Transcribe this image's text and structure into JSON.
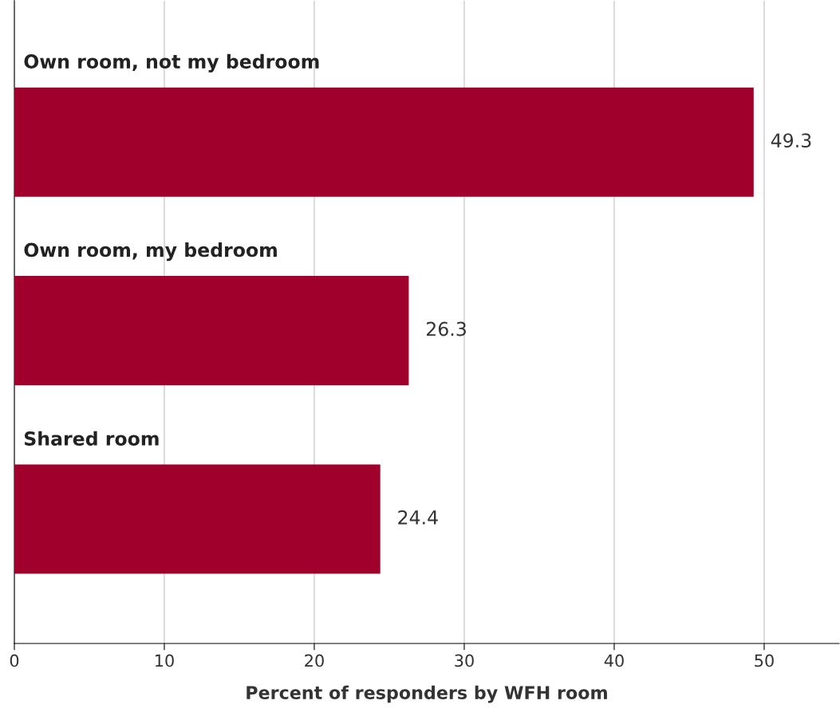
{
  "chart_data": {
    "type": "bar",
    "orientation": "horizontal",
    "xlabel": "Percent of responders by WFH room",
    "categories": [
      "Own room, not my bedroom",
      "Own room, my bedroom",
      "Shared room"
    ],
    "values": [
      49.3,
      26.3,
      24.4
    ],
    "color": "#a0002c",
    "data_labels": true,
    "xlim": [
      0,
      55
    ],
    "xticks": [
      0,
      10,
      20,
      30,
      40,
      50
    ],
    "grid": "x"
  }
}
